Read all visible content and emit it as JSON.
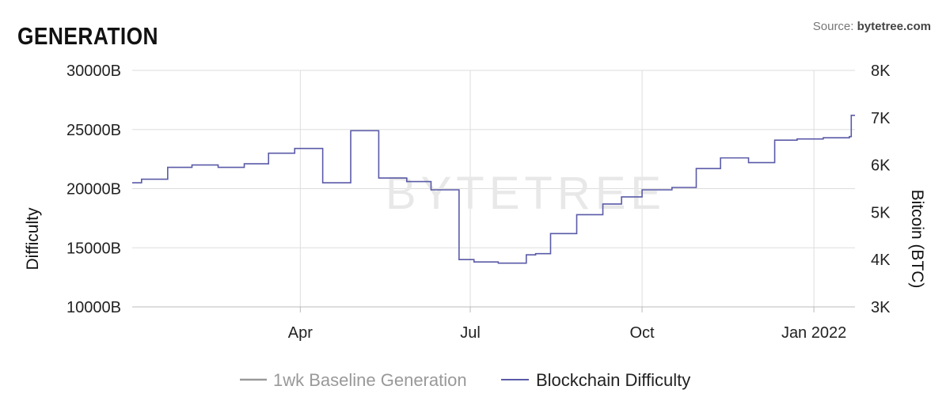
{
  "header": {
    "title": "GENERATION",
    "source_prefix": "Source: ",
    "source_site": "bytetree.com"
  },
  "watermark": "BYTETREE",
  "chart_data": {
    "type": "line",
    "title": "GENERATION",
    "grid": true,
    "legend_position": "bottom",
    "x_ticks": [
      "Apr",
      "Jul",
      "Oct",
      "Jan 2022"
    ],
    "y_left": {
      "label": "Difficulty",
      "range": [
        10000,
        30000
      ],
      "ticks": [
        "10000B",
        "15000B",
        "20000B",
        "25000B",
        "30000B"
      ]
    },
    "y_right": {
      "label": "Bitcoin (BTC)",
      "range": [
        3000,
        8000
      ],
      "ticks": [
        "3K",
        "4K",
        "5K",
        "6K",
        "7K",
        "8K"
      ]
    },
    "series": [
      {
        "name": "1wk Baseline Generation",
        "color": "#999999",
        "axis": "right",
        "x": [],
        "values": []
      },
      {
        "name": "Blockchain Difficulty",
        "color": "#5a5aa8",
        "axis": "left",
        "x": [
          "2021-01-01",
          "2021-01-06",
          "2021-01-20",
          "2021-02-02",
          "2021-02-16",
          "2021-03-02",
          "2021-03-15",
          "2021-03-29",
          "2021-04-13",
          "2021-04-28",
          "2021-05-13",
          "2021-05-28",
          "2021-06-10",
          "2021-06-25",
          "2021-07-03",
          "2021-07-16",
          "2021-07-31",
          "2021-08-05",
          "2021-08-13",
          "2021-08-27",
          "2021-09-10",
          "2021-09-20",
          "2021-10-01",
          "2021-10-17",
          "2021-10-30",
          "2021-11-12",
          "2021-11-27",
          "2021-12-11",
          "2021-12-23",
          "2022-01-06",
          "2022-01-20",
          "2022-01-21"
        ],
        "values": [
          20500,
          20800,
          21800,
          22000,
          21800,
          22100,
          23000,
          23400,
          20500,
          24900,
          20900,
          20600,
          19900,
          14000,
          13800,
          13700,
          14400,
          14500,
          16200,
          17800,
          18700,
          19300,
          19900,
          20100,
          21700,
          22600,
          22200,
          24100,
          24200,
          24300,
          24400,
          26200
        ]
      }
    ]
  }
}
